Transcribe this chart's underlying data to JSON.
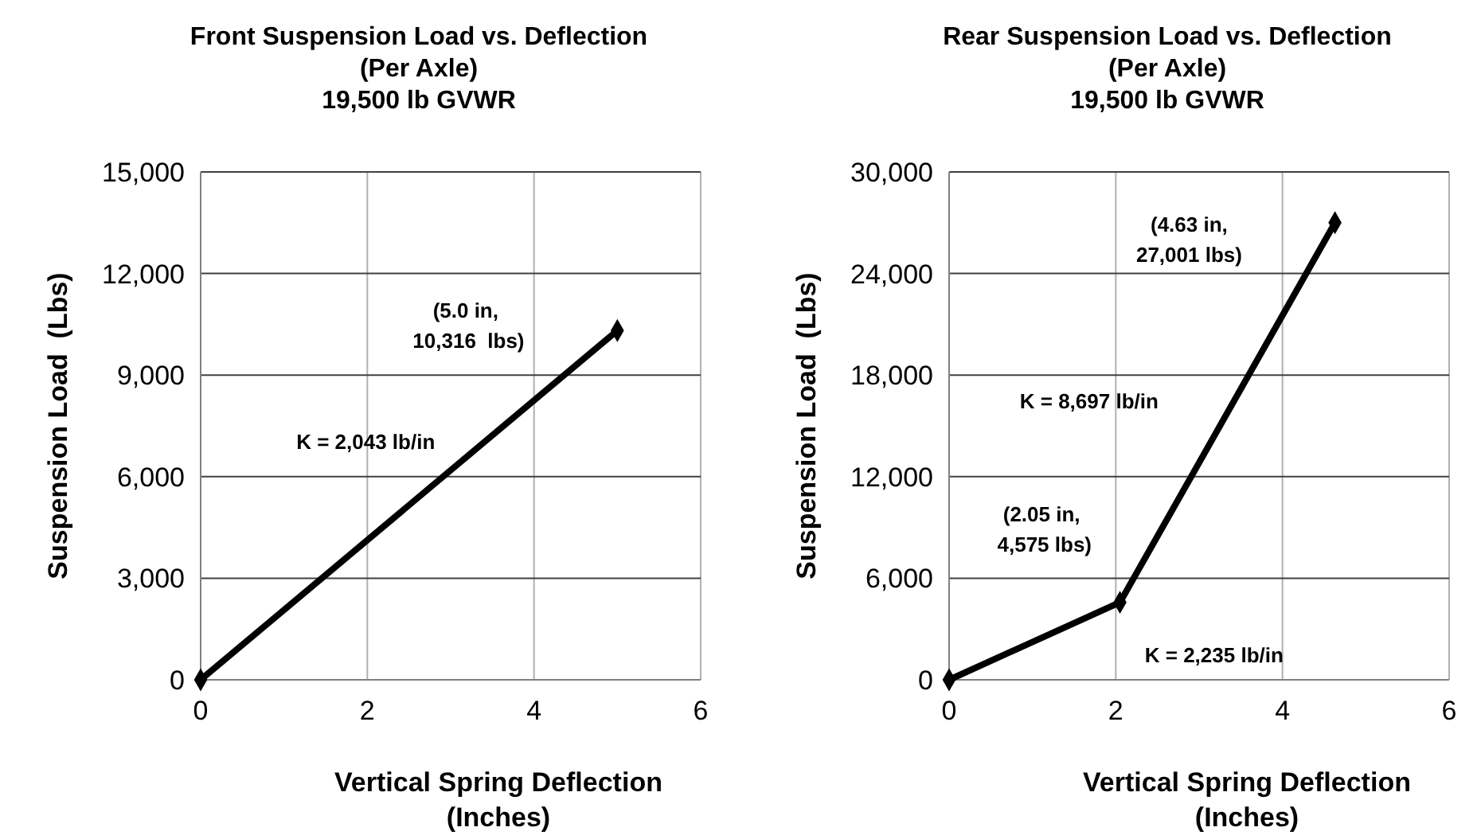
{
  "chart_data": [
    {
      "type": "line",
      "title": "Front Suspension Load vs. Deflection\n(Per Axle)\n19,500 lb GVWR",
      "xlabel": "Vertical Spring Deflection\n(Inches)",
      "ylabel": "Suspension Load  (Lbs)",
      "x": [
        0,
        5.0
      ],
      "series": [
        {
          "color": "#000000",
          "values": [
            0,
            10316
          ]
        }
      ],
      "xlim": [
        0,
        6
      ],
      "xticks": [
        0,
        2,
        4,
        6
      ],
      "ylim": [
        0,
        15000
      ],
      "yticks": [
        {
          "value": 0,
          "label": "0"
        },
        {
          "value": 3000,
          "label": "3,000"
        },
        {
          "value": 6000,
          "label": "6,000"
        },
        {
          "value": 9000,
          "label": "9,000"
        },
        {
          "value": 12000,
          "label": "12,000"
        },
        {
          "value": 15000,
          "label": "15,000"
        }
      ],
      "grid": true,
      "marker": "diamond",
      "line_style": "solid",
      "annotations": [
        "(5.0 in,\n 10,316  lbs)",
        "K = 2,043 lb/in"
      ]
    },
    {
      "type": "line",
      "title": "Rear Suspension Load vs. Deflection\n(Per Axle)\n19,500 lb GVWR",
      "xlabel": "Vertical Spring Deflection\n(Inches)",
      "ylabel": "Suspension Load  (Lbs)",
      "x": [
        0,
        2.05,
        4.63
      ],
      "series": [
        {
          "color": "#000000",
          "values": [
            0,
            4575,
            27001
          ]
        }
      ],
      "xlim": [
        0,
        6
      ],
      "xticks": [
        0,
        2,
        4,
        6
      ],
      "ylim": [
        0,
        30000
      ],
      "yticks": [
        {
          "value": 0,
          "label": "0"
        },
        {
          "value": 6000,
          "label": "6,000"
        },
        {
          "value": 12000,
          "label": "12,000"
        },
        {
          "value": 18000,
          "label": "18,000"
        },
        {
          "value": 24000,
          "label": "24,000"
        },
        {
          "value": 30000,
          "label": "30,000"
        }
      ],
      "grid": true,
      "marker": "diamond",
      "line_style": "solid",
      "annotations": [
        "(4.63 in,\n27,001 lbs)",
        "K = 8,697 lb/in",
        "(2.05 in,\n 4,575 lbs)",
        "K = 2,235 lb/in"
      ]
    }
  ]
}
